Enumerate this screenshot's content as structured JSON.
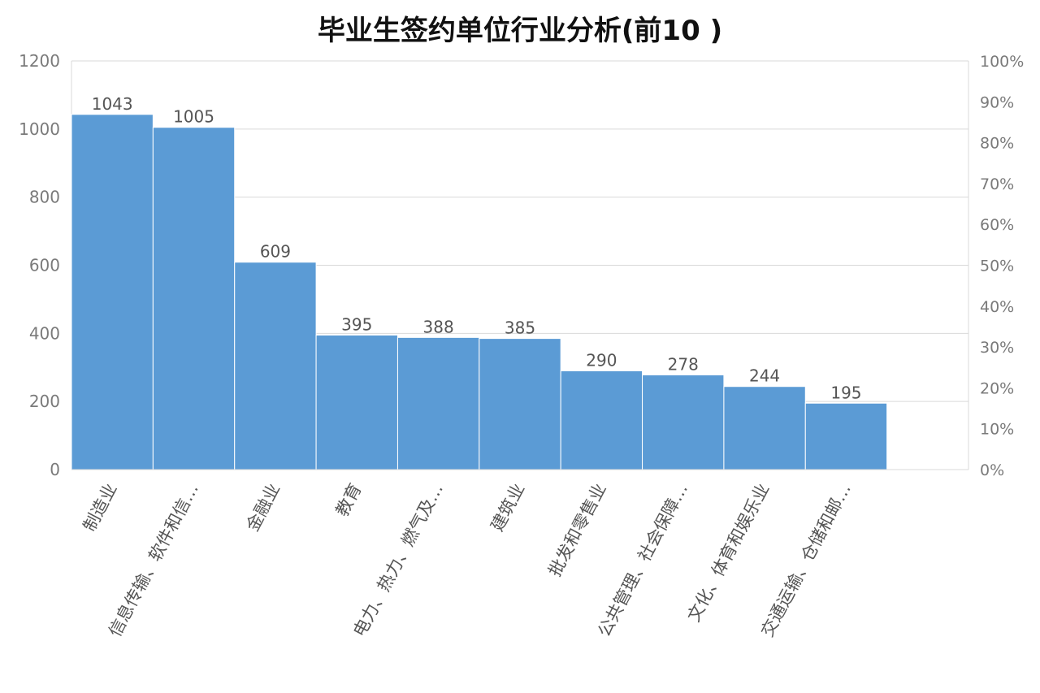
{
  "chart_data": {
    "type": "bar",
    "title": "毕业生签约单位行业分析(前10 )",
    "categories": [
      "制造业",
      "信息传输、软件和信…",
      "金融业",
      "教育",
      "电力、热力、燃气及…",
      "建筑业",
      "批发和零售业",
      "公共管理、社会保障…",
      "文化、体育和娱乐业",
      "交通运输、仓储和邮…"
    ],
    "values": [
      1043,
      1005,
      609,
      395,
      388,
      385,
      290,
      278,
      244,
      195
    ],
    "data_labels": [
      "1043",
      "1005",
      "609",
      "395",
      "388",
      "385",
      "290",
      "278",
      "244",
      "195"
    ],
    "ylim": [
      0,
      1200
    ],
    "y_ticks": [
      "0",
      "200",
      "400",
      "600",
      "800",
      "1000",
      "1200"
    ],
    "y2lim": [
      0,
      1
    ],
    "y2_ticks": [
      "0%",
      "10%",
      "20%",
      "30%",
      "40%",
      "50%",
      "60%",
      "70%",
      "80%",
      "90%",
      "100%"
    ],
    "grid": true,
    "bar_color": "#5b9bd5"
  }
}
